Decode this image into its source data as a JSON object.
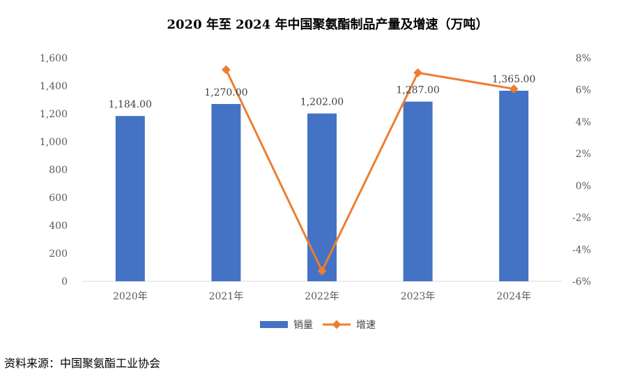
{
  "chart_data": {
    "type": "bar",
    "title": "2020 年至 2024 年中国聚氨酯制品产量及增速（万吨）",
    "categories": [
      "2020年",
      "2021年",
      "2022年",
      "2023年",
      "2024年"
    ],
    "series": [
      {
        "name": "销量",
        "type": "bar",
        "axis": "left",
        "values": [
          1184.0,
          1270.0,
          1202.0,
          1287.0,
          1365.0
        ],
        "labels": [
          "1,184.00",
          "1,270.00",
          "1,202.00",
          "1,287.00",
          "1,365.00"
        ]
      },
      {
        "name": "增速",
        "type": "line",
        "axis": "right",
        "values": [
          null,
          7.26,
          -5.35,
          7.07,
          6.06
        ]
      }
    ],
    "y_left": {
      "min": 0,
      "max": 1600,
      "step": 200,
      "ticks": [
        "0",
        "200",
        "400",
        "600",
        "800",
        "1,000",
        "1,200",
        "1,400",
        "1,600"
      ]
    },
    "y_right": {
      "min": -6,
      "max": 8,
      "step": 2,
      "ticks": [
        "-6%",
        "-4%",
        "-2%",
        "0%",
        "2%",
        "4%",
        "6%",
        "8%"
      ]
    },
    "grid": false,
    "legend_position": "bottom",
    "colors": {
      "bar": "#4472C4",
      "line": "#ED7D31"
    }
  },
  "source_note": "资料来源：中国聚氨酯工业协会"
}
